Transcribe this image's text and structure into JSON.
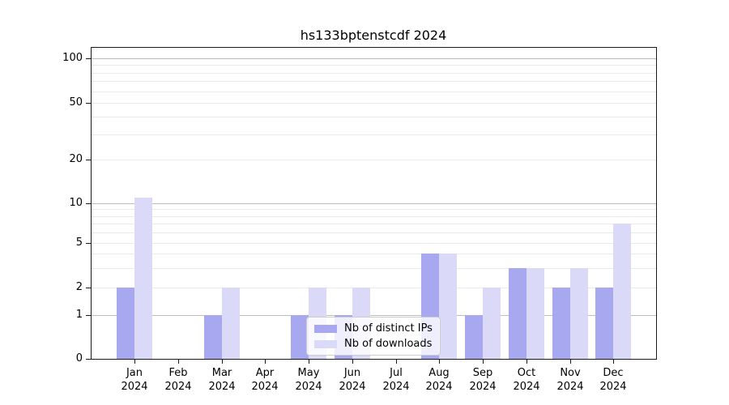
{
  "chart_data": {
    "type": "bar",
    "title": "hs133bptenstcdf 2024",
    "categories": [
      "Jan 2024",
      "Feb 2024",
      "Mar 2024",
      "Apr 2024",
      "May 2024",
      "Jun 2024",
      "Jul 2024",
      "Aug 2024",
      "Sep 2024",
      "Oct 2024",
      "Nov 2024",
      "Dec 2024"
    ],
    "x_tick_months": [
      "Jan",
      "Feb",
      "Mar",
      "Apr",
      "May",
      "Jun",
      "Jul",
      "Aug",
      "Sep",
      "Oct",
      "Nov",
      "Dec"
    ],
    "x_tick_year": "2024",
    "series": [
      {
        "name": "Nb of distinct IPs",
        "color": "#a8a8f0",
        "values": [
          2,
          0,
          1,
          0,
          1,
          1,
          0,
          4,
          1,
          3,
          2,
          2
        ]
      },
      {
        "name": "Nb of downloads",
        "color": "#dadaf8",
        "values": [
          11,
          0,
          2,
          0,
          2,
          2,
          0,
          4,
          2,
          3,
          3,
          7
        ]
      }
    ],
    "y_axis": {
      "scale": "symlog-like",
      "ticks": [
        0,
        1,
        2,
        5,
        10,
        20,
        50,
        100
      ],
      "ylim": [
        0,
        116
      ]
    },
    "grid": {
      "major_values": [
        1,
        10,
        100
      ],
      "minor_values": [
        2,
        3,
        4,
        5,
        6,
        7,
        8,
        9,
        20,
        30,
        40,
        50,
        60,
        70,
        80,
        90
      ],
      "major_color": "#bcbcbc",
      "minor_color": "#eaeaea"
    },
    "legend": {
      "position": "inside-lower-center",
      "background": "rgba(255,255,255,0.8)",
      "border_color": "#cccccc"
    },
    "xlabel": "",
    "ylabel": ""
  }
}
